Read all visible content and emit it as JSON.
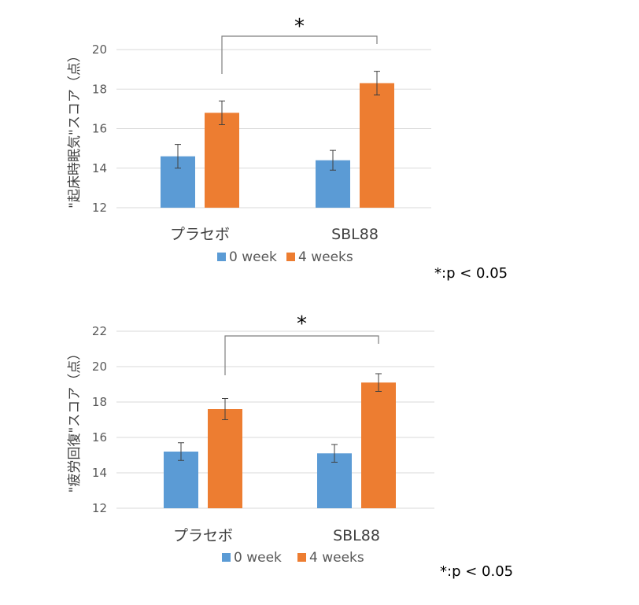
{
  "colors": {
    "series0": "#5b9bd5",
    "series1": "#ed7d31",
    "grid": "#d9d9d9",
    "text": "#595959",
    "bracket": "#7f7f7f"
  },
  "chart_data": [
    {
      "type": "bar",
      "categories": [
        "プラセボ",
        "SBL88"
      ],
      "series": [
        {
          "name": "0 week",
          "values": [
            14.6,
            14.4
          ],
          "errors": [
            0.6,
            0.5
          ]
        },
        {
          "name": "4 weeks",
          "values": [
            16.8,
            18.3
          ],
          "errors": [
            0.6,
            0.6
          ]
        }
      ],
      "ylabel": "\"起床時眠気\"スコア（点）",
      "ylim": [
        12,
        20
      ],
      "yticks": [
        12,
        14,
        16,
        18,
        20
      ],
      "grid": true,
      "legend": "bottom",
      "annotation": "*",
      "note": "*:p < 0.05"
    },
    {
      "type": "bar",
      "categories": [
        "プラセボ",
        "SBL88"
      ],
      "series": [
        {
          "name": "0 week",
          "values": [
            15.2,
            15.1
          ],
          "errors": [
            0.5,
            0.5
          ]
        },
        {
          "name": "4 weeks",
          "values": [
            17.6,
            19.1
          ],
          "errors": [
            0.6,
            0.5
          ]
        }
      ],
      "ylabel": "\"疲労回復\"スコア（点）",
      "ylim": [
        12,
        22
      ],
      "yticks": [
        12,
        14,
        16,
        18,
        20,
        22
      ],
      "grid": true,
      "legend": "bottom",
      "annotation": "*",
      "note": "*:p < 0.05"
    }
  ]
}
